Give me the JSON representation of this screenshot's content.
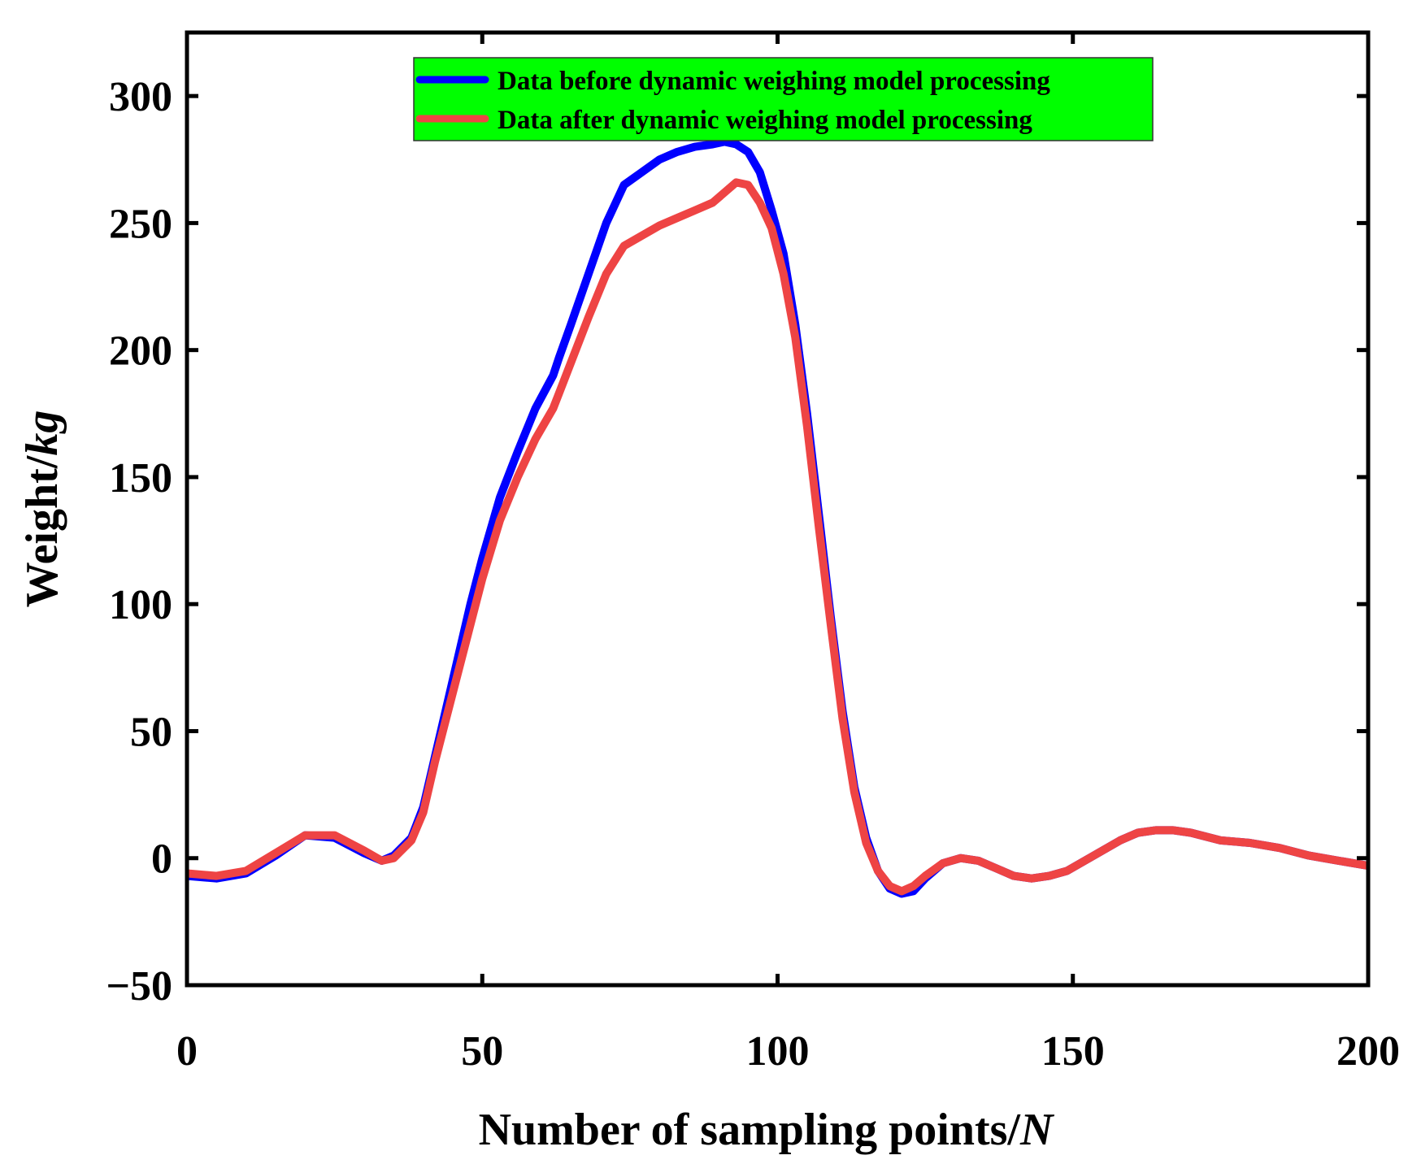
{
  "chart_data": {
    "type": "line",
    "title": "",
    "xlabel": "Number of sampling points/",
    "xlabel_unit": "N",
    "ylabel": "Weight/",
    "ylabel_unit": "kg",
    "xlim": [
      0,
      200
    ],
    "ylim": [
      -50,
      325
    ],
    "xticks": [
      0,
      50,
      100,
      150,
      200
    ],
    "xtick_labels": [
      "0",
      "50",
      "100",
      "150",
      "200"
    ],
    "yticks": [
      -50,
      0,
      50,
      100,
      150,
      200,
      250,
      300
    ],
    "ytick_labels": [
      "−50",
      "0",
      "50",
      "100",
      "150",
      "200",
      "250",
      "300"
    ],
    "grid": false,
    "legend": {
      "placement": "top-center",
      "background": "#00ff00"
    },
    "series": [
      {
        "name": "Data before dynamic weighing model processing",
        "color": "#0000ff",
        "x": [
          0,
          5,
          10,
          15,
          20,
          25,
          30,
          33,
          35,
          38,
          40,
          42,
          45,
          48,
          50,
          53,
          56,
          59,
          62,
          63,
          65,
          68,
          71,
          74,
          77,
          80,
          83,
          86,
          89,
          91,
          93,
          95,
          97,
          99,
          101,
          103,
          105,
          107,
          109,
          111,
          113,
          115,
          117,
          119,
          121,
          123,
          125,
          128,
          131,
          134,
          137,
          140,
          143,
          146,
          149,
          152,
          155,
          158,
          161,
          164,
          167,
          170,
          175,
          180,
          185,
          190,
          195,
          200
        ],
        "y": [
          -7,
          -8,
          -6,
          1,
          9,
          8,
          2,
          -1,
          1,
          8,
          20,
          40,
          70,
          100,
          118,
          142,
          160,
          177,
          190,
          197,
          210,
          230,
          250,
          265,
          270,
          275,
          278,
          280,
          281,
          282,
          281,
          278,
          270,
          255,
          238,
          210,
          175,
          135,
          95,
          58,
          28,
          8,
          -5,
          -12,
          -14,
          -13,
          -8,
          -2,
          0,
          -1,
          -4,
          -7,
          -8,
          -7,
          -5,
          -1,
          3,
          7,
          10,
          11,
          11,
          10,
          7,
          6,
          4,
          1,
          -1,
          -3
        ]
      },
      {
        "name": "Data after dynamic weighing model processing",
        "color": "#ee4444",
        "x": [
          0,
          5,
          10,
          15,
          20,
          25,
          30,
          33,
          35,
          38,
          40,
          42,
          45,
          48,
          50,
          53,
          56,
          59,
          62,
          63,
          65,
          68,
          71,
          74,
          77,
          80,
          83,
          86,
          89,
          91,
          93,
          95,
          97,
          99,
          101,
          103,
          105,
          107,
          109,
          111,
          113,
          115,
          117,
          119,
          121,
          123,
          125,
          128,
          131,
          134,
          137,
          140,
          143,
          146,
          149,
          152,
          155,
          158,
          161,
          164,
          167,
          170,
          175,
          180,
          185,
          190,
          195,
          200
        ],
        "y": [
          -6,
          -7,
          -5,
          2,
          9,
          9,
          3,
          -1,
          0,
          7,
          18,
          38,
          65,
          92,
          110,
          133,
          150,
          165,
          177,
          183,
          195,
          213,
          230,
          241,
          245,
          249,
          252,
          255,
          258,
          262,
          266,
          265,
          258,
          248,
          230,
          205,
          170,
          130,
          92,
          55,
          26,
          6,
          -5,
          -11,
          -13,
          -11,
          -7,
          -2,
          0,
          -1,
          -4,
          -7,
          -8,
          -7,
          -5,
          -1,
          3,
          7,
          10,
          11,
          11,
          10,
          7,
          6,
          4,
          1,
          -1,
          -3
        ]
      }
    ]
  }
}
